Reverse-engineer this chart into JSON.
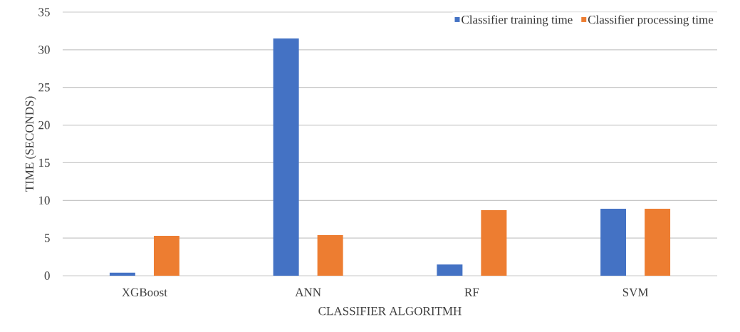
{
  "chart_data": {
    "type": "bar",
    "xlabel": "CLASSIFIER ALGORITMH",
    "ylabel": "TIME (SECONDS)",
    "categories": [
      "XGBoost",
      "ANN",
      "RF",
      "SVM"
    ],
    "series": [
      {
        "name": "Classifier training time",
        "color": "#4472c4",
        "values": [
          0.4,
          31.5,
          1.5,
          8.9
        ]
      },
      {
        "name": "Classifier processing time",
        "color": "#ed7d31",
        "values": [
          5.3,
          5.4,
          8.7,
          8.9
        ]
      }
    ],
    "ylim": [
      0,
      35
    ],
    "yticks": [
      0,
      5,
      10,
      15,
      20,
      25,
      30,
      35
    ],
    "grid": "y",
    "legend": "top right"
  }
}
